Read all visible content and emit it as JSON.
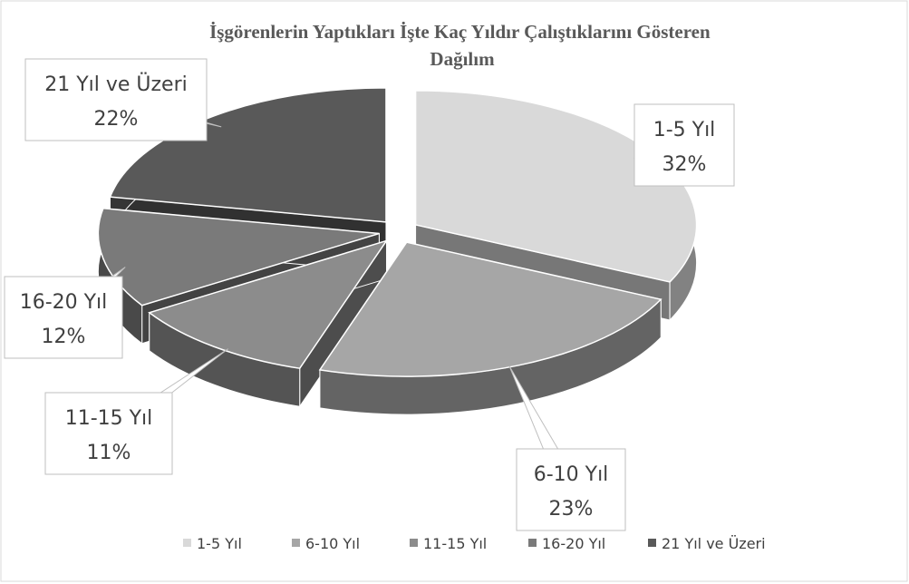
{
  "chart_data": {
    "type": "pie3d",
    "title": "İşgörenlerin Yaptıkları İşte Kaç Yıldır Çalıştıklarını Gösteren Dağılım",
    "categories": [
      "1-5 Yıl",
      "6-10 Yıl",
      "11-15 Yıl",
      "16-20 Yıl",
      "21 Yıl ve Üzeri"
    ],
    "values": [
      32,
      23,
      11,
      12,
      22
    ],
    "value_labels": [
      "32%",
      "23%",
      "11%",
      "12%",
      "22%"
    ],
    "colors": [
      "#d9d9d9",
      "#a6a6a6",
      "#8c8c8c",
      "#7a7a7a",
      "#595959"
    ],
    "legend": "bottom"
  }
}
